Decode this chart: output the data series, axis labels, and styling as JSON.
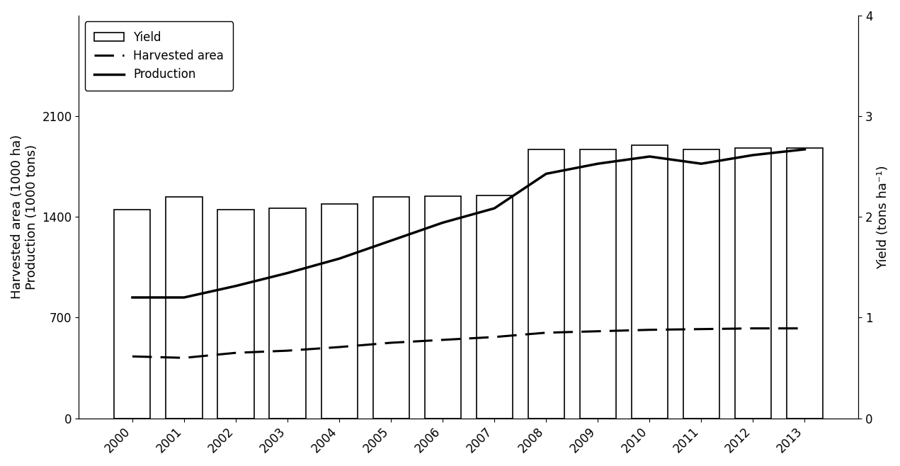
{
  "years": [
    2000,
    2001,
    2002,
    2003,
    2004,
    2005,
    2006,
    2007,
    2008,
    2009,
    2010,
    2011,
    2012,
    2013
  ],
  "yield_bars": [
    1450,
    1540,
    1450,
    1460,
    1490,
    1540,
    1545,
    1550,
    1870,
    1870,
    1900,
    1870,
    1880,
    1880
  ],
  "harvested_area": [
    430,
    420,
    455,
    470,
    495,
    525,
    545,
    565,
    595,
    605,
    615,
    620,
    625,
    625
  ],
  "production": [
    840,
    840,
    920,
    1010,
    1110,
    1235,
    1360,
    1460,
    1700,
    1770,
    1820,
    1770,
    1830,
    1870
  ],
  "ylabel_left": "Harvested area (1000 ha)\nProduction (1000 tons)",
  "ylabel_right": "Yield (tons ha⁻¹)",
  "ylim_left": [
    0,
    2800
  ],
  "ylim_right": [
    0,
    4.0
  ],
  "yticks_left": [
    0,
    700,
    1400,
    2100
  ],
  "yticks_right": [
    0.0,
    1.0,
    2.0,
    3.0,
    4.0
  ],
  "legend_labels": [
    "Yield",
    "Harvested area",
    "Production"
  ],
  "bar_color": "white",
  "bar_edgecolor": "black",
  "line_color": "black",
  "background_color": "white",
  "scale_factor": 700
}
